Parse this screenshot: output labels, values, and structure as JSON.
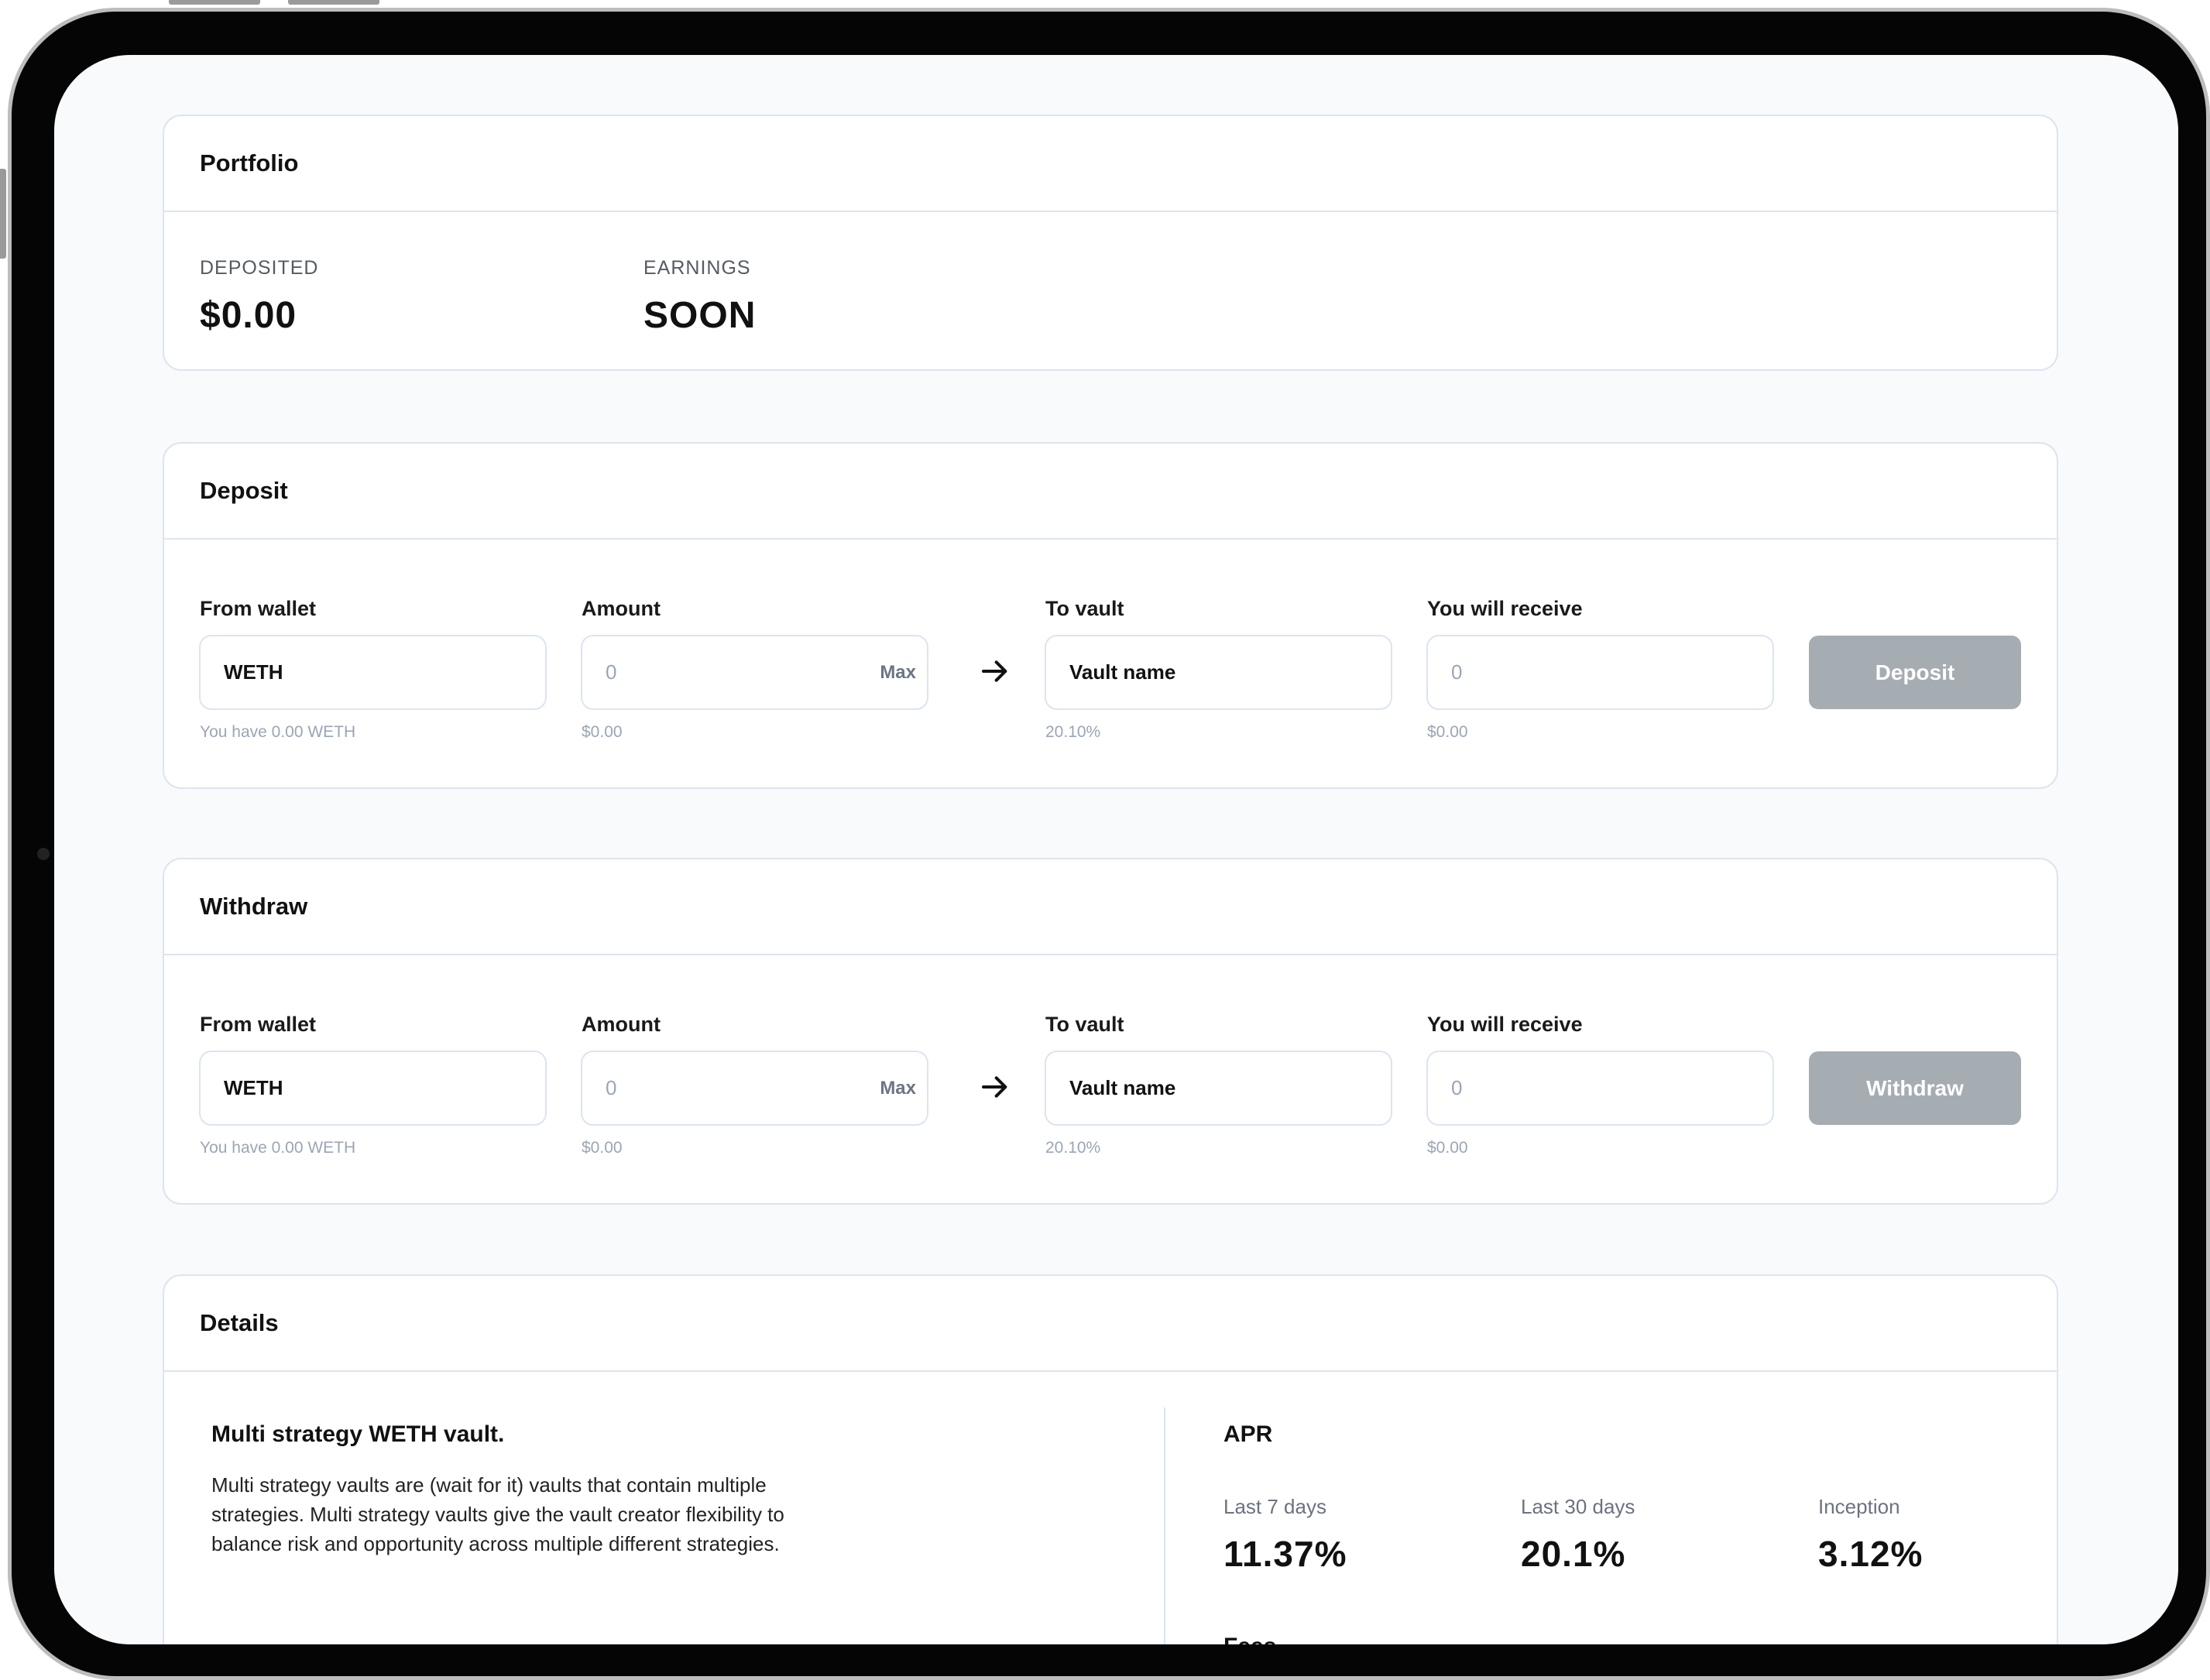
{
  "portfolio": {
    "title": "Portfolio",
    "deposited_label": "DEPOSITED",
    "deposited_value": "$0.00",
    "earnings_label": "EARNINGS",
    "earnings_value": "SOON"
  },
  "deposit": {
    "title": "Deposit",
    "from_wallet_label": "From wallet",
    "from_wallet_value": "WETH",
    "from_wallet_hint": "You have 0.00 WETH",
    "amount_label": "Amount",
    "amount_placeholder": "0",
    "max_label": "Max",
    "amount_hint": "$0.00",
    "to_vault_label": "To vault",
    "to_vault_value": "Vault name",
    "to_vault_hint": "20.10%",
    "receive_label": "You will receive",
    "receive_placeholder": "0",
    "receive_hint": "$0.00",
    "button_label": "Deposit"
  },
  "withdraw": {
    "title": "Withdraw",
    "from_wallet_label": "From wallet",
    "from_wallet_value": "WETH",
    "from_wallet_hint": "You have 0.00 WETH",
    "amount_label": "Amount",
    "amount_placeholder": "0",
    "max_label": "Max",
    "amount_hint": "$0.00",
    "to_vault_label": "To vault",
    "to_vault_value": "Vault name",
    "to_vault_hint": "20.10%",
    "receive_label": "You will receive",
    "receive_placeholder": "0",
    "receive_hint": "$0.00",
    "button_label": "Withdraw"
  },
  "details": {
    "title": "Details",
    "vault_title": "Multi strategy WETH vault.",
    "vault_description": "Multi strategy vaults are (wait for it) vaults that contain multiple strategies. Multi strategy vaults give the vault creator flexibility to balance risk and opportunity across multiple different strategies.",
    "apr_title": "APR",
    "apr": [
      {
        "label": "Last 7 days",
        "value": "11.37%"
      },
      {
        "label": "Last 30 days",
        "value": "20.1%"
      },
      {
        "label": "Inception",
        "value": "3.12%"
      }
    ],
    "fees_title": "Fees"
  },
  "colors": {
    "background": "#f8fafc",
    "card_border": "#dbe5f0",
    "button_disabled": "#a5adb3",
    "hint_text": "#9aa6b5"
  },
  "icons": [
    "arrow-right-icon"
  ]
}
